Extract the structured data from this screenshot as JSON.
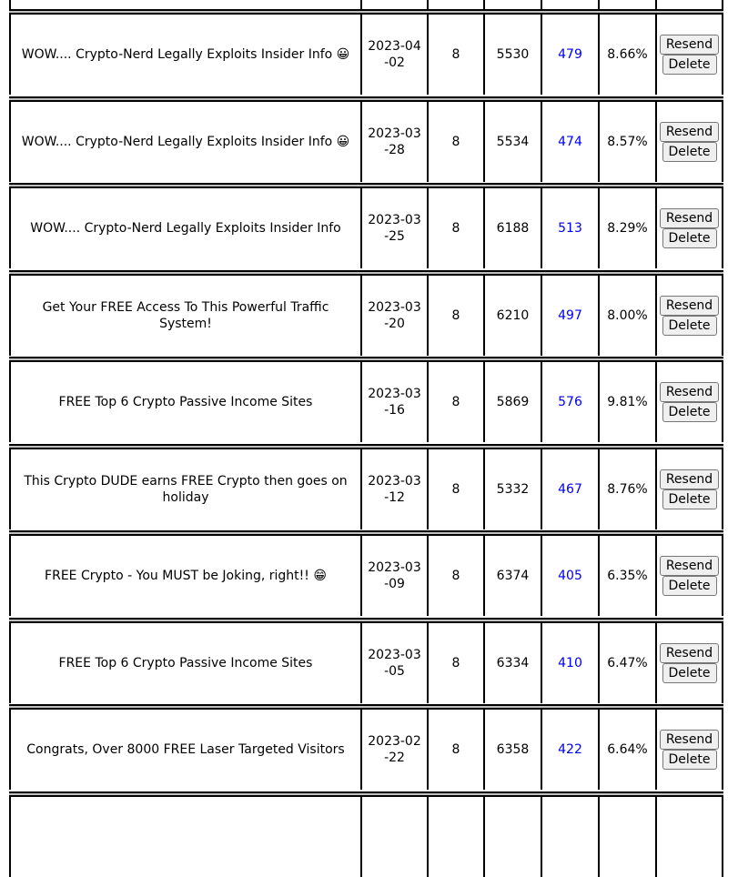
{
  "table": {
    "resend_label": "Resend",
    "delete_label": "Delete",
    "link_color": "#0000ee",
    "rows": [
      {
        "subject": "WOW.... Crypto-Nerd Legally Exploits Insider Info 😀",
        "date": "2023-04-02",
        "count": "8",
        "sent": "5530",
        "clicks": "479",
        "rate": "8.66%"
      },
      {
        "subject": "WOW.... Crypto-Nerd Legally Exploits Insider Info 😀",
        "date": "2023-03-28",
        "count": "8",
        "sent": "5534",
        "clicks": "474",
        "rate": "8.57%"
      },
      {
        "subject": "WOW.... Crypto-Nerd Legally Exploits Insider Info",
        "date": "2023-03-25",
        "count": "8",
        "sent": "6188",
        "clicks": "513",
        "rate": "8.29%"
      },
      {
        "subject": "Get Your FREE Access To This Powerful Traffic System!",
        "date": "2023-03-20",
        "count": "8",
        "sent": "6210",
        "clicks": "497",
        "rate": "8.00%"
      },
      {
        "subject": "FREE Top 6 Crypto Passive Income Sites",
        "date": "2023-03-16",
        "count": "8",
        "sent": "5869",
        "clicks": "576",
        "rate": "9.81%"
      },
      {
        "subject": "This Crypto DUDE earns FREE Crypto then goes on holiday",
        "date": "2023-03-12",
        "count": "8",
        "sent": "5332",
        "clicks": "467",
        "rate": "8.76%"
      },
      {
        "subject": "FREE Crypto - You MUST be Joking, right!! 😁",
        "date": "2023-03-09",
        "count": "8",
        "sent": "6374",
        "clicks": "405",
        "rate": "6.35%"
      },
      {
        "subject": "FREE Top 6 Crypto Passive Income Sites",
        "date": "2023-03-05",
        "count": "8",
        "sent": "6334",
        "clicks": "410",
        "rate": "6.47%"
      },
      {
        "subject": "Congrats, Over 8000 FREE Laser Targeted Visitors",
        "date": "2023-02-22",
        "count": "8",
        "sent": "6358",
        "clicks": "422",
        "rate": "6.64%"
      }
    ]
  }
}
